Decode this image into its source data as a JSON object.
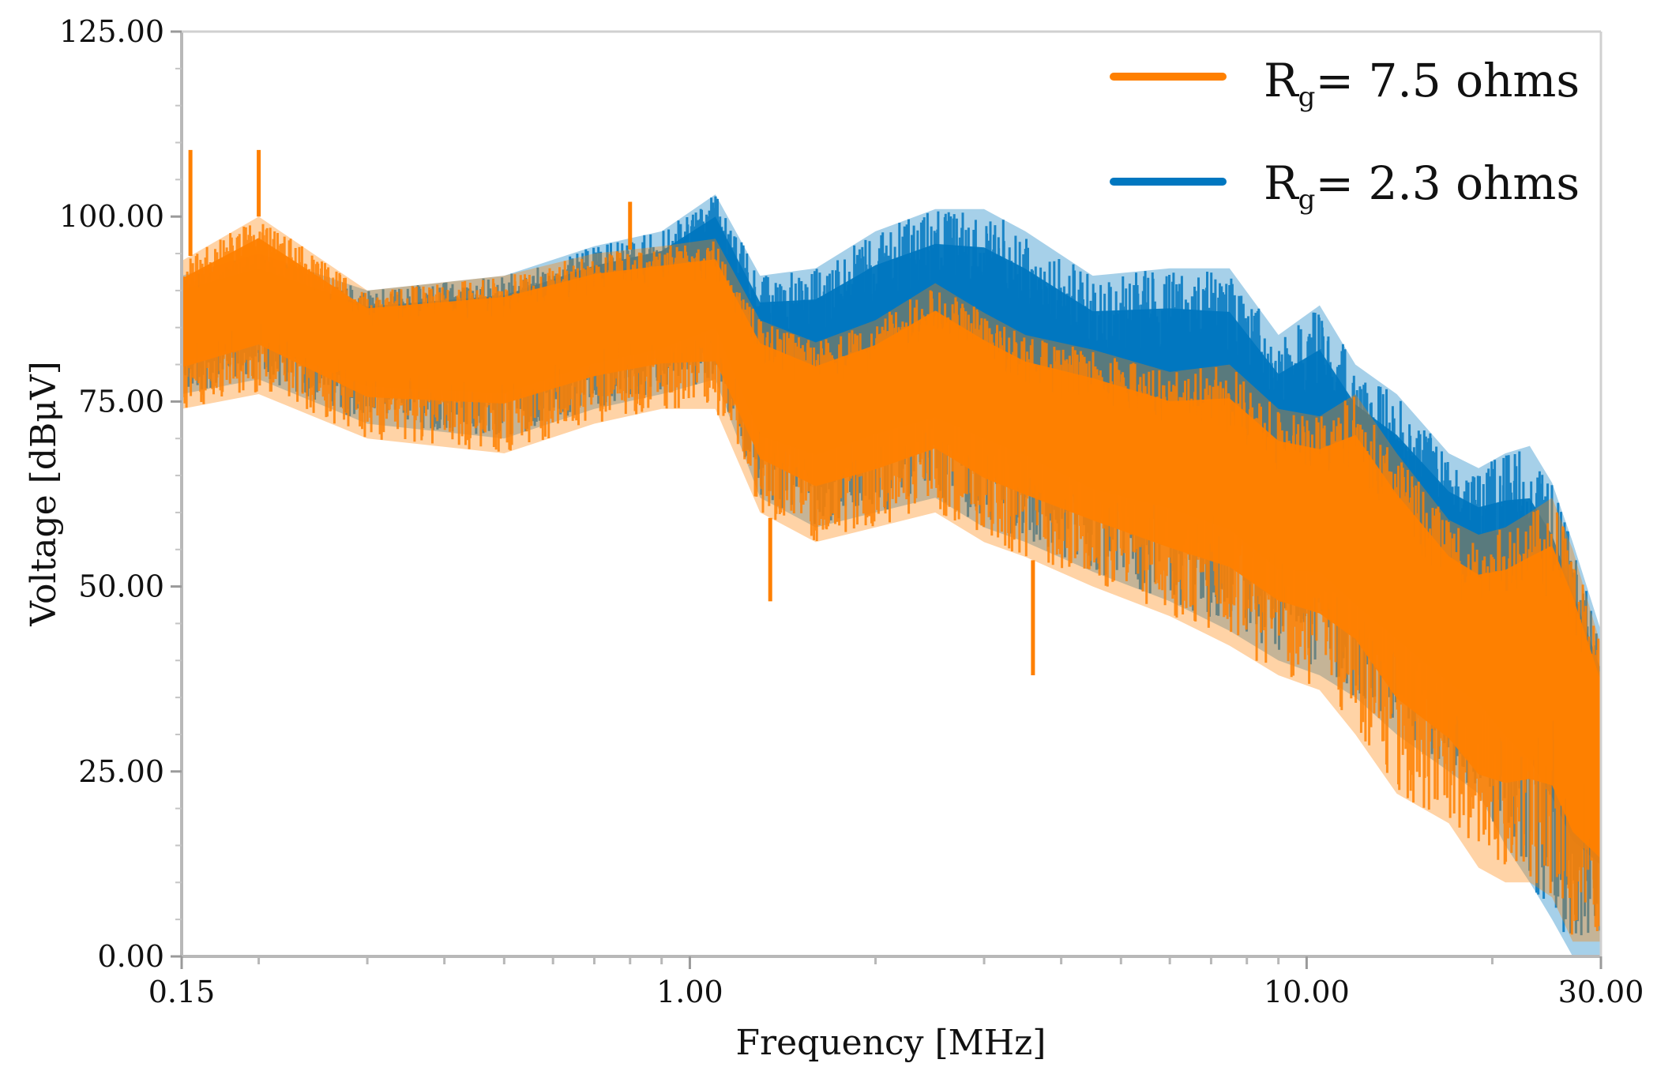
{
  "colors": {
    "series_orange": "#ff8000",
    "series_blue": "#0077c0",
    "axis": "#b8b8b8",
    "text": "#111111",
    "background": "#ffffff"
  },
  "legend": {
    "placement": "top-right",
    "entries": [
      {
        "prefix": "R",
        "subscript": "g",
        "suffix": "= 7.5 ohms",
        "color": "#ff8000"
      },
      {
        "prefix": "R",
        "subscript": "g",
        "suffix": "= 2.3 ohms",
        "color": "#0077c0"
      }
    ]
  },
  "chart_data": {
    "type": "line",
    "title": "",
    "xlabel": "Frequency [MHz]",
    "ylabel": "Voltage [dBμV]",
    "x_scale": "log",
    "xlim": [
      0.15,
      30.0
    ],
    "ylim": [
      0.0,
      125.0
    ],
    "x_ticks": [
      {
        "value": 0.15,
        "label": "0.15"
      },
      {
        "value": 1.0,
        "label": "1.00"
      },
      {
        "value": 10.0,
        "label": "10.00"
      },
      {
        "value": 30.0,
        "label": "30.00"
      }
    ],
    "y_ticks": [
      {
        "value": 0,
        "label": "0.00"
      },
      {
        "value": 25,
        "label": "25.00"
      },
      {
        "value": 50,
        "label": "50.00"
      },
      {
        "value": 75,
        "label": "75.00"
      },
      {
        "value": 100,
        "label": "100.00"
      },
      {
        "value": 125,
        "label": "125.00"
      }
    ],
    "grid": false,
    "series": [
      {
        "name": "Rg= 2.3 ohms",
        "color": "#0077c0",
        "x": [
          0.15,
          0.2,
          0.3,
          0.5,
          0.7,
          0.9,
          1.1,
          1.3,
          1.6,
          2.0,
          2.5,
          3.0,
          3.5,
          4.5,
          6.0,
          7.5,
          9.0,
          10.5,
          12.0,
          14.0,
          17.0,
          19.0,
          21.0,
          23.0,
          25.0,
          27.0,
          30.0
        ],
        "upper": [
          92,
          95,
          90,
          92,
          96,
          98,
          103,
          92,
          93,
          98,
          101,
          101,
          98,
          92,
          93,
          93,
          84,
          88,
          80,
          76,
          68,
          66,
          68,
          69,
          64,
          56,
          44
        ],
        "lower": [
          76,
          78,
          72,
          70,
          74,
          76,
          78,
          62,
          58,
          60,
          62,
          58,
          56,
          52,
          48,
          44,
          40,
          38,
          35,
          30,
          25,
          22,
          15,
          10,
          5,
          0,
          0
        ]
      },
      {
        "name": "Rg= 7.5 ohms",
        "color": "#ff8000",
        "x": [
          0.15,
          0.2,
          0.3,
          0.5,
          0.7,
          0.9,
          1.1,
          1.3,
          1.6,
          2.0,
          2.5,
          3.0,
          3.5,
          4.5,
          6.0,
          7.5,
          9.0,
          10.5,
          12.0,
          14.0,
          17.0,
          19.0,
          21.0,
          23.0,
          25.0,
          27.0,
          30.0
        ],
        "upper": [
          94,
          100,
          90,
          92,
          95,
          96,
          97,
          86,
          83,
          86,
          91,
          87,
          84,
          82,
          79,
          80,
          74,
          73,
          76,
          68,
          59,
          57,
          58,
          60,
          62,
          55,
          42
        ],
        "lower": [
          74,
          76,
          70,
          68,
          72,
          74,
          74,
          60,
          56,
          58,
          60,
          56,
          54,
          50,
          46,
          42,
          38,
          36,
          30,
          22,
          18,
          12,
          10,
          10,
          8,
          2,
          2
        ],
        "peaks": [
          {
            "x": 0.155,
            "y": 109
          },
          {
            "x": 0.2,
            "y": 109
          },
          {
            "x": 0.8,
            "y": 102
          },
          {
            "x": 1.35,
            "y": 48
          },
          {
            "x": 3.6,
            "y": 38
          }
        ]
      }
    ]
  }
}
